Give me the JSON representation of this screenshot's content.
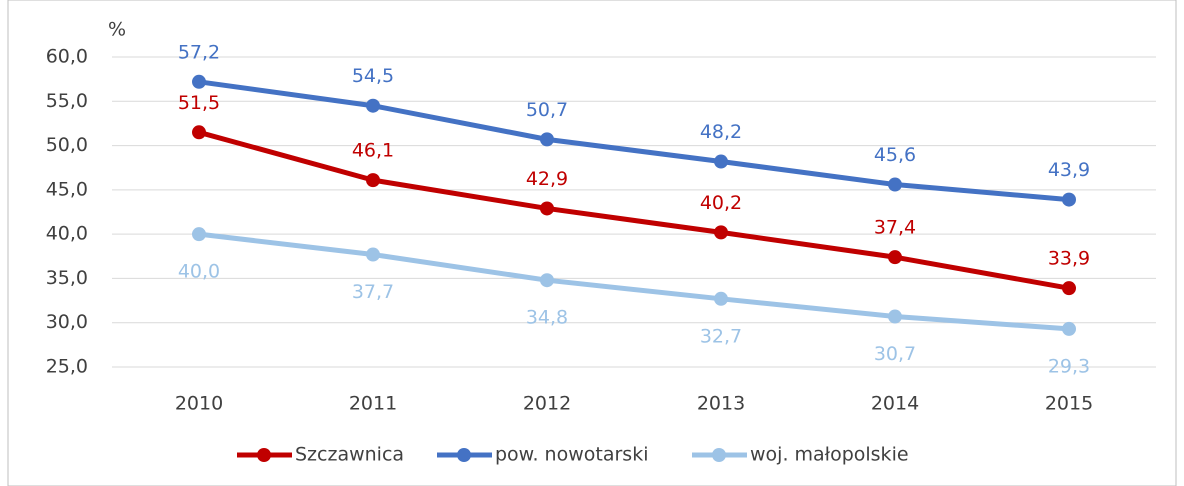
{
  "chart_data": {
    "type": "line",
    "y_axis_label": "%",
    "categories": [
      "2010",
      "2011",
      "2012",
      "2013",
      "2014",
      "2015"
    ],
    "series": [
      {
        "name": "Szczawnica",
        "color": "#c00000",
        "values": [
          51.5,
          46.1,
          42.9,
          40.2,
          37.4,
          33.9
        ],
        "value_labels": [
          "51,5",
          "46,1",
          "42,9",
          "40,2",
          "37,4",
          "33,9"
        ]
      },
      {
        "name": "pow. nowotarski",
        "color": "#4472c4",
        "values": [
          57.2,
          54.5,
          50.7,
          48.2,
          45.6,
          43.9
        ],
        "value_labels": [
          "57,2",
          "54,5",
          "50,7",
          "48,2",
          "45,6",
          "43,9"
        ]
      },
      {
        "name": "woj. małopolskie",
        "color": "#9dc3e6",
        "values": [
          40.0,
          37.7,
          34.8,
          32.7,
          30.7,
          29.3
        ],
        "value_labels": [
          "40,0",
          "37,7",
          "34,8",
          "32,7",
          "30,7",
          "29,3"
        ]
      }
    ],
    "ylim": [
      25,
      60
    ],
    "yticks": [
      {
        "value": 25,
        "label": "25,0"
      },
      {
        "value": 30,
        "label": "30,0"
      },
      {
        "value": 35,
        "label": "35,0"
      },
      {
        "value": 40,
        "label": "40,0"
      },
      {
        "value": 45,
        "label": "45,0"
      },
      {
        "value": 50,
        "label": "50,0"
      },
      {
        "value": 55,
        "label": "55,0"
      },
      {
        "value": 60,
        "label": "60,0"
      }
    ],
    "grid": true,
    "legend": "bottom"
  }
}
